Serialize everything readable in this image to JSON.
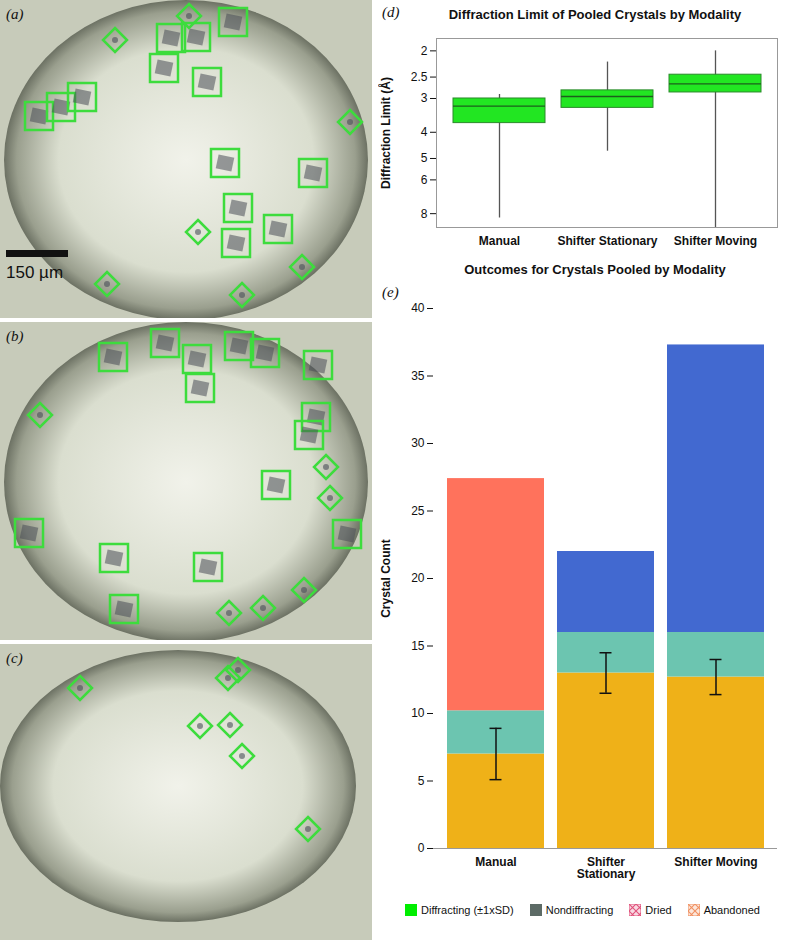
{
  "images": [
    {
      "label": "(a)",
      "scale_bar": "150 µm"
    },
    {
      "label": "(b)"
    },
    {
      "label": "(c)"
    }
  ],
  "chart_data": [
    {
      "type": "box",
      "panel": "(d)",
      "title": "Diffraction Limit of Pooled Crystals by Modality",
      "y_label": "Diffraction Limit (Å)",
      "categories": [
        "Manual",
        "Shifter Stationary",
        "Shifter Moving"
      ],
      "boxes": [
        {
          "min": 2.9,
          "q1": 3.0,
          "median": 3.2,
          "q3": 3.7,
          "max": 8.3
        },
        {
          "min": 2.2,
          "q1": 2.8,
          "median": 2.95,
          "q3": 3.25,
          "max": 4.7
        },
        {
          "min": 2.0,
          "q1": 2.45,
          "median": 2.65,
          "q3": 2.85,
          "max": 9
        }
      ],
      "color": "#22e622",
      "log": "y",
      "ylim": [
        9,
        1.8
      ],
      "yticks": [
        2,
        2.5,
        3,
        4,
        5,
        6,
        8
      ]
    },
    {
      "type": "bar",
      "panel": "(e)",
      "title": "Outcomes for Crystals Pooled by Modality",
      "y_label": "Crystal Count",
      "categories": [
        "Manual",
        "Shifter Stationary",
        "Shifter Moving"
      ],
      "stacked": true,
      "legend": "bottom",
      "series": [
        {
          "name": "Diffracting  (±1xSD)",
          "color": "#00ee00",
          "values": [
            7,
            13,
            12.7
          ],
          "error": [
            1.9,
            1.5,
            1.3
          ]
        },
        {
          "name": "Nondiffracting",
          "color": "#5d6b66",
          "values": [
            3.2,
            3,
            3.3
          ]
        },
        {
          "name": "Dried",
          "color": "#e0507a",
          "values": [
            17.2,
            0,
            0
          ]
        },
        {
          "name": "Abandoned",
          "color": "#f09060",
          "values": [
            0,
            6,
            21.3
          ]
        }
      ],
      "ylim": [
        0,
        40
      ],
      "yticks": [
        0,
        5,
        10,
        15,
        20,
        25,
        30,
        35,
        40
      ]
    }
  ]
}
